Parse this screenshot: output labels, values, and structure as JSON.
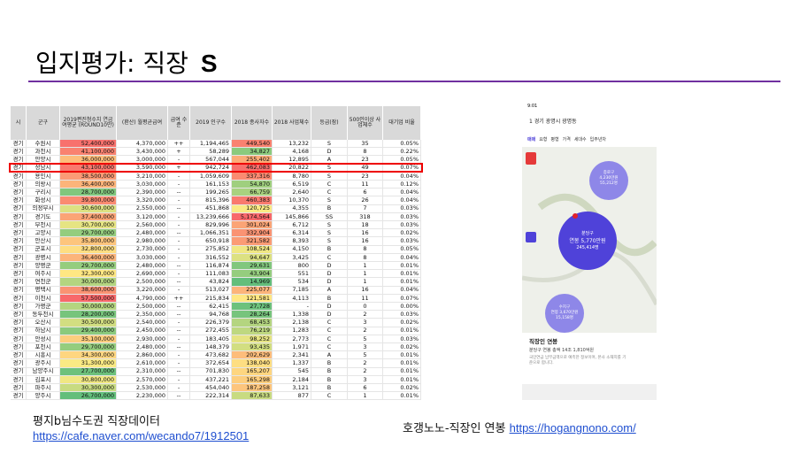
{
  "slide": {
    "title": "입지평가: 직장",
    "grade": "S",
    "left_caption": "평지b님수도권 직장데이터",
    "left_link": "https://cafe.naver.com/wecando7/1912501",
    "right_caption": "호갱노노-직장인 연봉",
    "right_link": "https://hogangnono.com/"
  },
  "table": {
    "headers": [
      "시",
      "군구",
      "2019편진청수치 연금여평균 (ROUND10만)",
      "(환산) 월평균급여",
      "급여 수준",
      "2019 인구수",
      "2018 종사자수",
      "2018 사업체수",
      "등급(잠)",
      "500인이상 사업체수",
      "대기업 비율"
    ],
    "highlight_row": 3,
    "rows": [
      [
        "경기",
        "수원시",
        "52,400,000",
        "4,370,000",
        "++",
        "1,194,465",
        "449,540",
        "13,232",
        "S",
        "35",
        "0.05%"
      ],
      [
        "경기",
        "과천시",
        "41,100,000",
        "3,430,000",
        "+",
        "58,289",
        "34,827",
        "4,168",
        "D",
        "8",
        "0.22%"
      ],
      [
        "경기",
        "안양시",
        "36,000,000",
        "3,000,000",
        "-",
        "567,044",
        "255,402",
        "12,895",
        "A",
        "23",
        "0.05%"
      ],
      [
        "경기",
        "성남시",
        "43,100,000",
        "3,590,000",
        "+",
        "942,724",
        "462,083",
        "20,822",
        "S",
        "49",
        "0.07%"
      ],
      [
        "경기",
        "용인시",
        "38,500,000",
        "3,210,000",
        "-",
        "1,059,609",
        "337,316",
        "8,780",
        "S",
        "23",
        "0.04%"
      ],
      [
        "경기",
        "의왕시",
        "36,400,000",
        "3,030,000",
        "-",
        "161,153",
        "54,870",
        "6,519",
        "C",
        "11",
        "0.12%"
      ],
      [
        "경기",
        "구리시",
        "28,700,000",
        "2,390,000",
        "--",
        "199,265",
        "66,759",
        "2,640",
        "C",
        "6",
        "0.04%"
      ],
      [
        "경기",
        "화성시",
        "39,800,000",
        "3,320,000",
        "-",
        "815,396",
        "460,383",
        "10,370",
        "S",
        "26",
        "0.04%"
      ],
      [
        "경기",
        "의정부시",
        "30,600,000",
        "2,550,000",
        "--",
        "451,868",
        "120,725",
        "4,355",
        "B",
        "7",
        "0.03%"
      ],
      [
        "경기",
        "경기도",
        "37,400,000",
        "3,120,000",
        "-",
        "13,239,666",
        "5,174,564",
        "145,866",
        "SS",
        "318",
        "0.03%"
      ],
      [
        "경기",
        "부천시",
        "30,700,000",
        "2,560,000",
        "-",
        "829,996",
        "301,024",
        "6,712",
        "S",
        "18",
        "0.03%"
      ],
      [
        "경기",
        "고양시",
        "29,700,000",
        "2,480,000",
        "--",
        "1,066,351",
        "332,904",
        "6,314",
        "S",
        "16",
        "0.02%"
      ],
      [
        "경기",
        "안산시",
        "35,800,000",
        "2,980,000",
        "-",
        "650,918",
        "321,582",
        "8,393",
        "S",
        "16",
        "0.03%"
      ],
      [
        "경기",
        "군포시",
        "32,800,000",
        "2,730,000",
        "-",
        "275,852",
        "108,524",
        "4,150",
        "B",
        "8",
        "0.05%"
      ],
      [
        "경기",
        "광명시",
        "36,400,000",
        "3,030,000",
        "-",
        "316,552",
        "94,647",
        "3,425",
        "C",
        "8",
        "0.04%"
      ],
      [
        "경기",
        "양평군",
        "29,700,000",
        "2,480,000",
        "--",
        "116,874",
        "29,631",
        "800",
        "D",
        "1",
        "0.01%"
      ],
      [
        "경기",
        "여주시",
        "32,300,000",
        "2,690,000",
        "-",
        "111,083",
        "43,904",
        "551",
        "D",
        "1",
        "0.01%"
      ],
      [
        "경기",
        "연천군",
        "30,000,000",
        "2,500,000",
        "--",
        "43,824",
        "14,969",
        "534",
        "D",
        "1",
        "0.01%"
      ],
      [
        "경기",
        "평택시",
        "38,600,000",
        "3,220,000",
        "-",
        "513,027",
        "225,077",
        "7,185",
        "A",
        "16",
        "0.04%"
      ],
      [
        "경기",
        "이천시",
        "57,500,000",
        "4,790,000",
        "++",
        "215,834",
        "121,581",
        "4,113",
        "B",
        "11",
        "0.07%"
      ],
      [
        "경기",
        "가평군",
        "30,000,000",
        "2,500,000",
        "--",
        "62,415",
        "27,728",
        "-",
        "D",
        "0",
        "0.00%"
      ],
      [
        "경기",
        "동두천시",
        "28,200,000",
        "2,350,000",
        "--",
        "94,768",
        "28,264",
        "1,338",
        "D",
        "2",
        "0.03%"
      ],
      [
        "경기",
        "오산시",
        "30,500,000",
        "2,540,000",
        "-",
        "226,379",
        "68,453",
        "2,138",
        "C",
        "3",
        "0.02%"
      ],
      [
        "경기",
        "하남시",
        "29,400,000",
        "2,450,000",
        "--",
        "272,455",
        "76,219",
        "1,283",
        "C",
        "2",
        "0.01%"
      ],
      [
        "경기",
        "안성시",
        "35,100,000",
        "2,930,000",
        "-",
        "183,405",
        "98,252",
        "2,773",
        "C",
        "5",
        "0.03%"
      ],
      [
        "경기",
        "포천시",
        "29,700,000",
        "2,480,000",
        "--",
        "148,379",
        "93,435",
        "1,971",
        "C",
        "3",
        "0.02%"
      ],
      [
        "경기",
        "시흥시",
        "34,300,000",
        "2,860,000",
        "-",
        "473,682",
        "202,629",
        "2,341",
        "A",
        "5",
        "0.01%"
      ],
      [
        "경기",
        "광주시",
        "31,300,000",
        "2,610,000",
        "-",
        "372,654",
        "138,040",
        "1,337",
        "B",
        "2",
        "0.01%"
      ],
      [
        "경기",
        "남양주시",
        "27,700,000",
        "2,310,000",
        "--",
        "701,830",
        "165,207",
        "545",
        "B",
        "2",
        "0.01%"
      ],
      [
        "경기",
        "김포시",
        "30,800,000",
        "2,570,000",
        "-",
        "437,221",
        "165,298",
        "2,184",
        "B",
        "3",
        "0.01%"
      ],
      [
        "경기",
        "파주시",
        "30,300,000",
        "2,530,000",
        "-",
        "454,040",
        "187,258",
        "3,121",
        "B",
        "6",
        "0.02%"
      ],
      [
        "경기",
        "양주시",
        "26,700,000",
        "2,230,000",
        "--",
        "222,314",
        "87,633",
        "877",
        "C",
        "1",
        "0.01%"
      ]
    ]
  },
  "phone": {
    "status": "9:01",
    "location": "1 경기 광명시 광명동",
    "tabs": [
      "매매",
      "요형",
      "평형",
      "가격",
      "세대수",
      "입주년차"
    ],
    "bubbles": [
      {
        "name": "분당구",
        "label": "연봉 5,770만원",
        "sub": "245,414명"
      },
      {
        "name": "종로구",
        "label": "4,230만원",
        "sub": "55,212명"
      },
      {
        "name": "수지구",
        "label": "연봉 3,670만원",
        "sub": "15,158명"
      }
    ],
    "panel_title": "직장인 연봉",
    "panel_line": "분당구 연봉 총액 14조 1,810억원",
    "panel_note": "국민연금 납부금액으로 예측한 정보이며, 본사 소재지를 기준으로 합니다."
  }
}
